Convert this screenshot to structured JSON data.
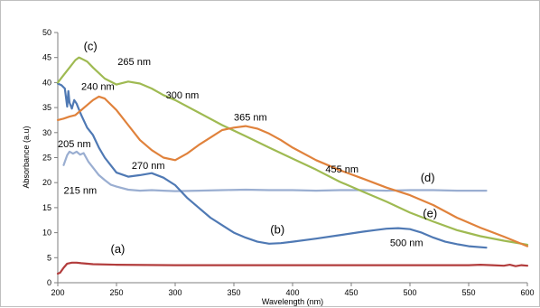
{
  "chart_data": {
    "type": "line",
    "title": "",
    "xlabel": "Wavelength  (nm)",
    "ylabel": "Absorbance (a.u)",
    "xlim": [
      200,
      600
    ],
    "ylim": [
      0,
      50
    ],
    "x_ticks": [
      200,
      250,
      300,
      350,
      400,
      450,
      500,
      550,
      600
    ],
    "y_ticks": [
      0,
      5,
      10,
      15,
      20,
      25,
      30,
      35,
      40,
      45,
      50
    ],
    "grid": false,
    "legend": "none",
    "series": [
      {
        "color": "#9aaed1",
        "x": [
          205,
          208,
          210,
          213,
          216,
          219,
          222,
          226,
          230,
          235,
          240,
          245,
          250,
          260,
          270,
          280,
          290,
          300,
          320,
          340,
          360,
          380,
          400,
          420,
          440,
          460,
          480,
          500,
          520,
          540,
          565
        ],
        "y": [
          23.5,
          25.5,
          26.2,
          25.8,
          26.2,
          25.6,
          25.9,
          24.2,
          23.0,
          21.5,
          20.5,
          19.6,
          19.2,
          18.6,
          18.4,
          18.5,
          18.4,
          18.3,
          18.4,
          18.5,
          18.6,
          18.5,
          18.5,
          18.4,
          18.5,
          18.5,
          18.4,
          18.5,
          18.5,
          18.4,
          18.4
        ]
      },
      {
        "color": "#4f79b4",
        "x": [
          200,
          203,
          206,
          208,
          209,
          210,
          212,
          214,
          216,
          220,
          225,
          230,
          235,
          240,
          245,
          250,
          260,
          270,
          280,
          290,
          300,
          310,
          320,
          330,
          340,
          350,
          360,
          370,
          380,
          390,
          400,
          420,
          440,
          460,
          470,
          480,
          490,
          500,
          510,
          520,
          530,
          540,
          550,
          565
        ],
        "y": [
          39.8,
          39.5,
          38.8,
          35.2,
          38.3,
          36.0,
          34.8,
          36.5,
          35.8,
          33.5,
          31.0,
          29.5,
          27.0,
          25.0,
          23.5,
          22.0,
          21.2,
          21.5,
          21.9,
          21.0,
          19.5,
          17.0,
          15.0,
          13.0,
          11.5,
          10.0,
          9.0,
          8.2,
          7.8,
          7.9,
          8.2,
          8.8,
          9.5,
          10.2,
          10.5,
          10.8,
          10.9,
          10.7,
          10.0,
          9.0,
          8.2,
          7.7,
          7.3,
          7.0
        ]
      },
      {
        "color": "#9fba52",
        "x": [
          200,
          205,
          210,
          215,
          218,
          220,
          225,
          230,
          240,
          250,
          260,
          270,
          280,
          290,
          300,
          320,
          340,
          360,
          380,
          400,
          420,
          440,
          460,
          480,
          500,
          520,
          540,
          560,
          580,
          600
        ],
        "y": [
          40.0,
          41.5,
          43.0,
          44.5,
          45.0,
          44.8,
          44.2,
          43.0,
          40.8,
          39.6,
          40.2,
          39.8,
          38.8,
          37.5,
          36.5,
          34.0,
          31.5,
          29.3,
          27.0,
          24.8,
          22.6,
          20.2,
          18.2,
          16.2,
          14.0,
          12.2,
          10.5,
          9.3,
          8.4,
          7.6
        ]
      },
      {
        "color": "#e0823c",
        "x": [
          200,
          205,
          210,
          215,
          220,
          225,
          230,
          235,
          240,
          250,
          260,
          270,
          280,
          290,
          300,
          310,
          320,
          330,
          340,
          350,
          360,
          370,
          380,
          390,
          400,
          420,
          440,
          460,
          480,
          500,
          520,
          540,
          560,
          580,
          600
        ],
        "y": [
          32.5,
          32.8,
          33.2,
          33.5,
          34.5,
          35.5,
          36.5,
          37.2,
          36.8,
          34.5,
          31.5,
          28.5,
          26.5,
          25.0,
          24.5,
          25.8,
          27.5,
          29.0,
          30.5,
          31.0,
          31.3,
          30.8,
          29.8,
          28.5,
          27.0,
          24.5,
          22.5,
          20.8,
          19.0,
          17.5,
          15.5,
          13.0,
          11.0,
          9.2,
          7.3
        ]
      },
      {
        "color": "#b23c3c",
        "x": [
          200,
          202,
          205,
          208,
          212,
          216,
          220,
          230,
          250,
          300,
          350,
          400,
          450,
          500,
          550,
          560,
          570,
          580,
          585,
          590,
          595,
          600
        ],
        "y": [
          1.8,
          2.0,
          3.0,
          3.8,
          4.0,
          4.0,
          3.9,
          3.7,
          3.6,
          3.5,
          3.5,
          3.5,
          3.5,
          3.5,
          3.5,
          3.6,
          3.5,
          3.4,
          3.6,
          3.3,
          3.5,
          3.4
        ]
      }
    ],
    "annotations": [
      {
        "text": "(c)",
        "x": 222,
        "y": 46.5,
        "size": "big"
      },
      {
        "text": "265 nm",
        "x": 251,
        "y": 43.5,
        "size": "normal"
      },
      {
        "text": "240 nm",
        "x": 220,
        "y": 38.5,
        "size": "normal"
      },
      {
        "text": "300 nm",
        "x": 292,
        "y": 36.8,
        "size": "normal"
      },
      {
        "text": "365 nm",
        "x": 350,
        "y": 32.4,
        "size": "normal"
      },
      {
        "text": "205 nm",
        "x": 200,
        "y": 27.1,
        "size": "normal"
      },
      {
        "text": "270 nm",
        "x": 263,
        "y": 22.7,
        "size": "normal"
      },
      {
        "text": "455 nm",
        "x": 428,
        "y": 22.0,
        "size": "normal"
      },
      {
        "text": "(d)",
        "x": 509,
        "y": 20.2,
        "size": "big"
      },
      {
        "text": "215 nm",
        "x": 205,
        "y": 17.8,
        "size": "normal"
      },
      {
        "text": "(e)",
        "x": 511,
        "y": 13.1,
        "size": "big"
      },
      {
        "text": "(b)",
        "x": 381,
        "y": 9.8,
        "size": "big"
      },
      {
        "text": "500 nm",
        "x": 483,
        "y": 7.3,
        "size": "normal"
      },
      {
        "text": "(a)",
        "x": 245,
        "y": 6.0,
        "size": "big"
      }
    ]
  }
}
